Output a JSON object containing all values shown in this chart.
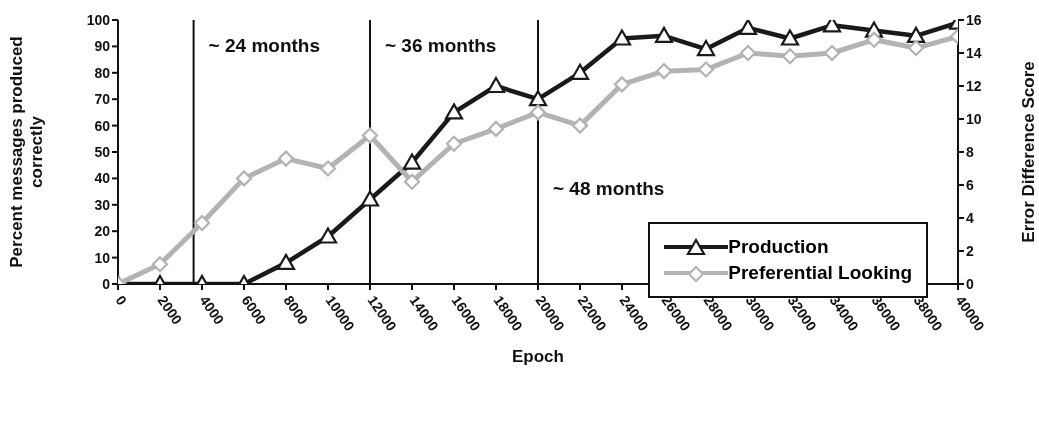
{
  "chart_data": {
    "type": "line",
    "xlabel": "Epoch",
    "ylabel": "Percent messages produced correctly",
    "y2label": "Error Difference Score",
    "x": [
      0,
      2000,
      4000,
      6000,
      8000,
      10000,
      12000,
      14000,
      16000,
      18000,
      20000,
      22000,
      24000,
      26000,
      28000,
      30000,
      32000,
      34000,
      36000,
      38000,
      40000
    ],
    "series": [
      {
        "name": "Production",
        "color": "#1a1a1a",
        "marker": "triangle",
        "values": [
          0,
          0,
          0,
          0,
          8,
          18,
          32,
          46,
          65,
          75,
          70,
          80,
          93,
          94,
          89,
          97,
          93,
          98,
          96,
          94,
          99
        ]
      },
      {
        "name": "Preferential Looking",
        "color": "#b3b3b3",
        "marker": "diamond",
        "axis": "y2",
        "values": [
          0,
          1.2,
          3.7,
          6.4,
          7.6,
          7.0,
          9.0,
          6.2,
          8.5,
          9.4,
          10.4,
          9.6,
          12.1,
          12.9,
          13.0,
          14.0,
          13.8,
          14.0,
          14.8,
          14.3,
          15.0
        ]
      }
    ],
    "xlim": [
      0,
      40000
    ],
    "xticks": [
      0,
      2000,
      4000,
      6000,
      8000,
      10000,
      12000,
      14000,
      16000,
      18000,
      20000,
      22000,
      24000,
      26000,
      28000,
      30000,
      32000,
      34000,
      36000,
      38000,
      40000
    ],
    "ylim": [
      0,
      100
    ],
    "yticks": [
      0,
      10,
      20,
      30,
      40,
      50,
      60,
      70,
      80,
      90,
      100
    ],
    "y2lim": [
      0,
      16
    ],
    "y2ticks": [
      0,
      2,
      4,
      6,
      8,
      10,
      12,
      14,
      16
    ],
    "ref_lines": [
      {
        "axis": "x",
        "value": 3600,
        "label": "~ 24 months"
      },
      {
        "axis": "x",
        "value": 12000,
        "label": "~ 36 months"
      },
      {
        "axis": "x",
        "value": 20000,
        "label": "~ 48 months"
      }
    ],
    "legend": "bottom right"
  }
}
